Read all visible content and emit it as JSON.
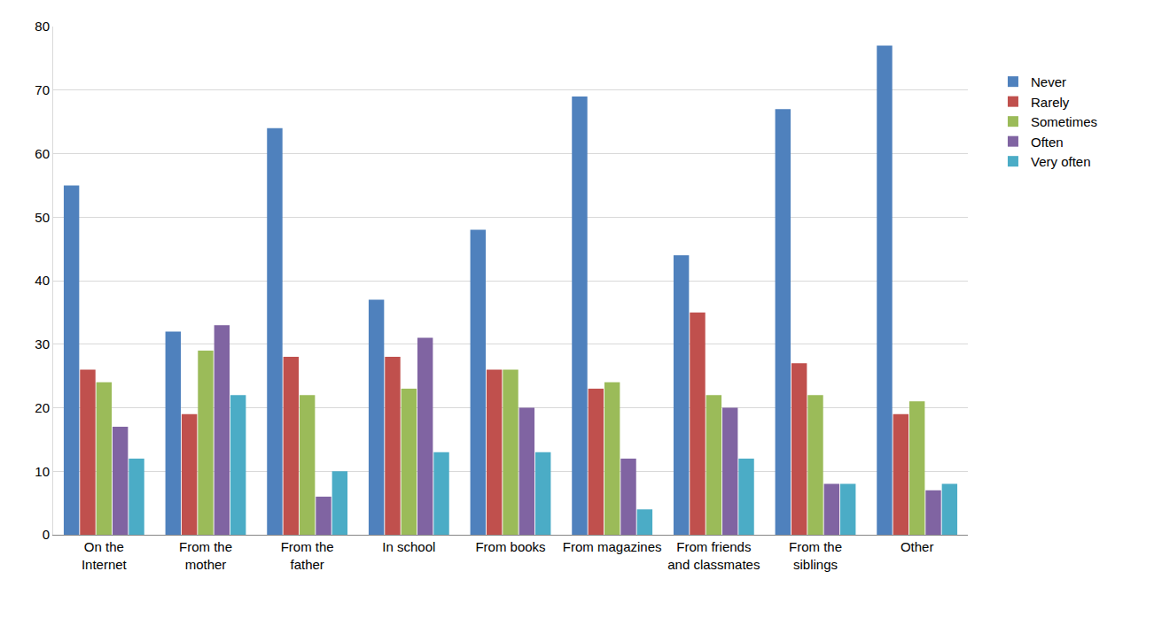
{
  "chart_data": {
    "type": "bar",
    "categories": [
      "On the Internet",
      "From the mother",
      "From the father",
      "In school",
      "From books",
      "From magazines",
      "From friends and classmates",
      "From the siblings",
      "Other"
    ],
    "series": [
      {
        "name": "Never",
        "color": "#4F81BD",
        "values": [
          55,
          32,
          64,
          37,
          48,
          69,
          44,
          67,
          77
        ]
      },
      {
        "name": "Rarely",
        "color": "#C0504D",
        "values": [
          26,
          19,
          28,
          28,
          26,
          23,
          35,
          27,
          19
        ]
      },
      {
        "name": "Sometimes",
        "color": "#9BBB59",
        "values": [
          24,
          29,
          22,
          23,
          26,
          24,
          22,
          22,
          21
        ]
      },
      {
        "name": "Often",
        "color": "#8064A2",
        "values": [
          17,
          33,
          6,
          31,
          20,
          12,
          20,
          8,
          7
        ]
      },
      {
        "name": "Very often",
        "color": "#4BACC6",
        "values": [
          12,
          22,
          10,
          13,
          13,
          4,
          12,
          8,
          8
        ]
      }
    ],
    "ylim": [
      0,
      80
    ],
    "yticks": [
      0,
      10,
      20,
      30,
      40,
      50,
      60,
      70,
      80
    ],
    "grid": true,
    "legend": "right"
  }
}
